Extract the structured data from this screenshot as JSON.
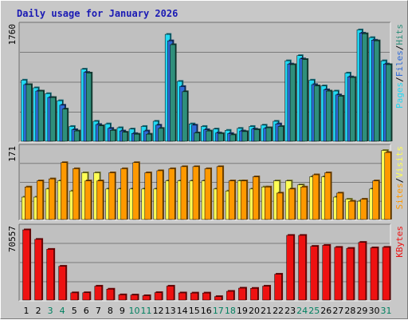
{
  "chart_data": {
    "type": "bar",
    "title": "Daily usage for January 2026",
    "x": [
      "1",
      "2",
      "3",
      "4",
      "5",
      "6",
      "7",
      "8",
      "9",
      "10",
      "11",
      "12",
      "13",
      "14",
      "15",
      "16",
      "17",
      "18",
      "19",
      "20",
      "21",
      "22",
      "23",
      "24",
      "25",
      "26",
      "27",
      "28",
      "29",
      "30",
      "31"
    ],
    "weekend_days": [
      3,
      4,
      10,
      11,
      17,
      18,
      24,
      25,
      31
    ],
    "colors": {
      "pages": "#2f8f7b",
      "files": "#2f6bd8",
      "hits": "#22d8f2",
      "visits": "#ffff55",
      "sites": "#ff9900",
      "kbytes": "#ee1111",
      "title": "#1a1ab4",
      "weekday_label": "#000000",
      "weekend_label": "#008060"
    },
    "panels": [
      {
        "name": "hits-files-pages",
        "ymax_label": "1760",
        "ymax": 1760,
        "legend": [
          {
            "text": "Pages",
            "color": "#22d8f2"
          },
          {
            "text": "/",
            "color": "#000000"
          },
          {
            "text": "Files",
            "color": "#2f6bd8"
          },
          {
            "text": "/",
            "color": "#000000"
          },
          {
            "text": "Hits",
            "color": "#2f8f7b"
          }
        ],
        "series": [
          {
            "name": "Hits",
            "values": [
              950,
              830,
              740,
              630,
              230,
              1120,
              310,
              270,
              210,
              190,
              230,
              310,
              1660,
              930,
              270,
              230,
              190,
              170,
              200,
              230,
              250,
              310,
              1250,
              1330,
              950,
              860,
              780,
              1060,
              1730,
              1610,
              1250
            ]
          },
          {
            "name": "Files",
            "values": [
              880,
              780,
              680,
              560,
              180,
              1070,
              260,
              200,
              160,
              120,
              160,
              250,
              1560,
              850,
              250,
              180,
              130,
              120,
              160,
              190,
              200,
              270,
              1200,
              1280,
              880,
              800,
              720,
              1000,
              1680,
              1570,
              1200
            ]
          },
          {
            "name": "Pages",
            "values": [
              880,
              780,
              680,
              500,
              160,
              1060,
              240,
              170,
              140,
              110,
              110,
              200,
              1500,
              770,
              130,
              160,
              120,
              100,
              150,
              180,
              210,
              230,
              1190,
              1270,
              860,
              780,
              700,
              990,
              1670,
              1560,
              1190
            ]
          }
        ]
      },
      {
        "name": "sites-visits",
        "ymax_label": "171",
        "ymax": 171,
        "legend": [
          {
            "text": "Sites",
            "color": "#ff9900"
          },
          {
            "text": "/",
            "color": "#000000"
          },
          {
            "text": "Visits",
            "color": "#ffff55"
          }
        ],
        "series": [
          {
            "name": "Visits",
            "values": [
              55,
              55,
              75,
              95,
              70,
              115,
              115,
              75,
              75,
              75,
              75,
              75,
              95,
              95,
              95,
              95,
              75,
              70,
              95,
              75,
              80,
              95,
              95,
              85,
              105,
              105,
              55,
              50,
              45,
              75,
              170
            ]
          },
          {
            "name": "Sites",
            "values": [
              80,
              95,
              100,
              140,
              125,
              95,
              95,
              115,
              125,
              140,
              115,
              120,
              125,
              130,
              130,
              125,
              130,
              95,
              95,
              105,
              80,
              65,
              75,
              80,
              110,
              115,
              65,
              45,
              50,
              95,
              165
            ]
          }
        ]
      },
      {
        "name": "kbytes",
        "ymax_label": "70557",
        "ymax": 70557,
        "legend": [
          {
            "text": "KBytes",
            "color": "#ee1111"
          }
        ],
        "series": [
          {
            "name": "KBytes",
            "values": [
              70557,
              61000,
              51000,
              34000,
              7300,
              7400,
              14000,
              11000,
              5300,
              5100,
              4400,
              7500,
              14000,
              7200,
              7100,
              7100,
              3500,
              8800,
              12000,
              11800,
              14000,
              26000,
              65000,
              65000,
              54000,
              55000,
              53000,
              52000,
              58000,
              52500,
              53000
            ]
          }
        ]
      }
    ]
  }
}
